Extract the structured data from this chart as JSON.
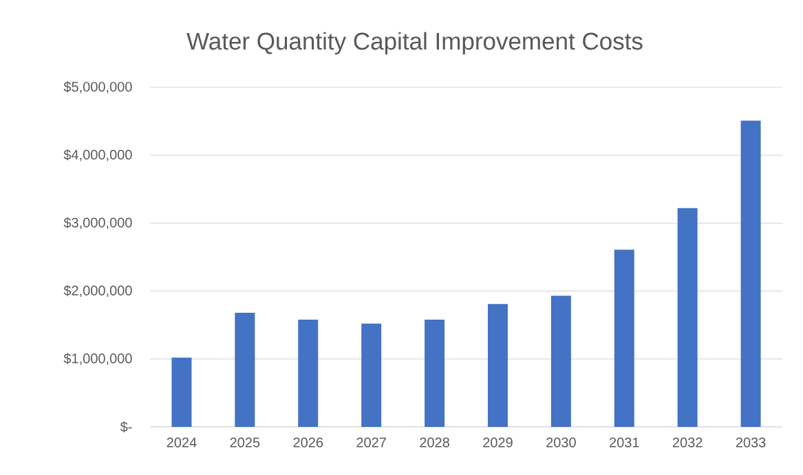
{
  "chart_data": {
    "type": "bar",
    "title": "Water Quantity Capital Improvement Costs",
    "categories": [
      "2024",
      "2025",
      "2026",
      "2027",
      "2028",
      "2029",
      "2030",
      "2031",
      "2032",
      "2033"
    ],
    "values": [
      1020000,
      1680000,
      1580000,
      1520000,
      1580000,
      1810000,
      1930000,
      2610000,
      3220000,
      4510000
    ],
    "color": "#4472c4",
    "ylim": [
      0,
      5000000
    ],
    "yticks": [
      {
        "value": 0,
        "label": "$-"
      },
      {
        "value": 1000000,
        "label": "$1,000,000"
      },
      {
        "value": 2000000,
        "label": "$2,000,000"
      },
      {
        "value": 3000000,
        "label": "$3,000,000"
      },
      {
        "value": 4000000,
        "label": "$4,000,000"
      },
      {
        "value": 5000000,
        "label": "$5,000,000"
      }
    ],
    "grid": "y"
  }
}
